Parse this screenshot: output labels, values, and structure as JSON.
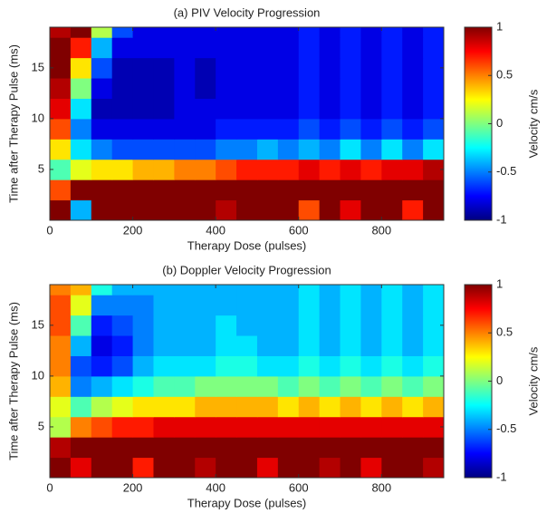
{
  "chart_data": [
    {
      "type": "heatmap",
      "title": "(a) PIV Velocity Progression",
      "x_label": "Therapy Dose (pulses)",
      "y_label": "Time after Therapy Pulse (ms)",
      "x": [
        25,
        75,
        125,
        175,
        225,
        275,
        325,
        375,
        425,
        475,
        525,
        575,
        625,
        675,
        725,
        775,
        825,
        875,
        925
      ],
      "y": [
        1,
        3,
        5,
        7,
        9,
        11,
        13,
        15,
        17,
        19
      ],
      "z": [
        [
          1,
          -0.4,
          1,
          1,
          1,
          1,
          1,
          1,
          0.9,
          1,
          1,
          1,
          0.6,
          1,
          0.8,
          1,
          1,
          0.7,
          1
        ],
        [
          0.6,
          1,
          1,
          1,
          1,
          1,
          1,
          1,
          1,
          1,
          1,
          1,
          1,
          1,
          1,
          1,
          1,
          1,
          1
        ],
        [
          -0.1,
          0.2,
          0.3,
          0.3,
          0.4,
          0.4,
          0.5,
          0.5,
          0.6,
          0.7,
          0.7,
          0.7,
          0.8,
          0.7,
          0.8,
          0.7,
          0.8,
          0.8,
          0.9
        ],
        [
          0.3,
          -0.3,
          -0.5,
          -0.6,
          -0.6,
          -0.6,
          -0.6,
          -0.6,
          -0.5,
          -0.5,
          -0.4,
          -0.5,
          -0.4,
          -0.5,
          -0.3,
          -0.5,
          -0.3,
          -0.5,
          -0.3
        ],
        [
          0.6,
          -0.5,
          -0.8,
          -0.8,
          -0.8,
          -0.8,
          -0.8,
          -0.8,
          -0.7,
          -0.7,
          -0.7,
          -0.7,
          -0.6,
          -0.7,
          -0.6,
          -0.7,
          -0.6,
          -0.7,
          -0.6
        ],
        [
          0.8,
          -0.3,
          -0.9,
          -0.9,
          -0.9,
          -0.9,
          -0.8,
          -0.8,
          -0.8,
          -0.8,
          -0.8,
          -0.8,
          -0.7,
          -0.8,
          -0.7,
          -0.8,
          -0.7,
          -0.8,
          -0.7
        ],
        [
          0.9,
          0,
          -0.8,
          -0.9,
          -0.9,
          -0.9,
          -0.8,
          -0.9,
          -0.8,
          -0.8,
          -0.8,
          -0.8,
          -0.7,
          -0.8,
          -0.7,
          -0.8,
          -0.7,
          -0.8,
          -0.7
        ],
        [
          1,
          0.3,
          -0.6,
          -0.9,
          -0.9,
          -0.9,
          -0.8,
          -0.9,
          -0.8,
          -0.8,
          -0.8,
          -0.8,
          -0.7,
          -0.8,
          -0.7,
          -0.8,
          -0.7,
          -0.8,
          -0.7
        ],
        [
          1,
          0.7,
          -0.4,
          -0.8,
          -0.8,
          -0.8,
          -0.8,
          -0.8,
          -0.8,
          -0.8,
          -0.8,
          -0.8,
          -0.7,
          -0.8,
          -0.7,
          -0.8,
          -0.7,
          -0.8,
          -0.7
        ],
        [
          0.9,
          1,
          0.1,
          -0.6,
          -0.8,
          -0.8,
          -0.8,
          -0.8,
          -0.8,
          -0.8,
          -0.8,
          -0.8,
          -0.7,
          -0.8,
          -0.7,
          -0.8,
          -0.7,
          -0.8,
          -0.7
        ]
      ],
      "xlim": [
        0,
        950
      ],
      "ylim": [
        0,
        19
      ],
      "xticks": [
        0,
        200,
        400,
        600,
        800
      ],
      "yticks": [
        5,
        10,
        15
      ],
      "colorbar": {
        "label": "Velocity cm/s",
        "clim": [
          -1,
          1
        ],
        "ticks": [
          -1,
          -0.5,
          0,
          0.5,
          1
        ],
        "colormap": "jet"
      }
    },
    {
      "type": "heatmap",
      "title": "(b) Doppler Velocity Progression",
      "x_label": "Therapy Dose (pulses)",
      "y_label": "Time after Therapy Pulse (ms)",
      "x": [
        25,
        75,
        125,
        175,
        225,
        275,
        325,
        375,
        425,
        475,
        525,
        575,
        625,
        675,
        725,
        775,
        825,
        875,
        925
      ],
      "y": [
        1,
        3,
        5,
        7,
        9,
        11,
        13,
        15,
        17,
        19
      ],
      "z": [
        [
          1,
          0.8,
          1,
          1,
          0.7,
          1,
          1,
          0.9,
          1,
          1,
          0.8,
          1,
          1,
          0.9,
          1,
          0.8,
          1,
          1,
          0.9
        ],
        [
          0.9,
          1,
          1,
          1,
          1,
          1,
          1,
          1,
          1,
          1,
          1,
          1,
          1,
          1,
          1,
          1,
          1,
          1,
          1
        ],
        [
          0.1,
          0.5,
          0.6,
          0.7,
          0.7,
          0.8,
          0.8,
          0.8,
          0.8,
          0.8,
          0.8,
          0.8,
          0.8,
          0.8,
          0.8,
          0.8,
          0.8,
          0.8,
          0.8
        ],
        [
          0.2,
          -0.1,
          0.1,
          0.2,
          0.3,
          0.3,
          0.3,
          0.4,
          0.4,
          0.4,
          0.4,
          0.3,
          0.4,
          0.3,
          0.4,
          0.3,
          0.4,
          0.3,
          0.4
        ],
        [
          0.4,
          -0.5,
          -0.4,
          -0.3,
          -0.2,
          -0.1,
          -0.1,
          0,
          0,
          0,
          0,
          -0.1,
          0,
          -0.1,
          0,
          -0.1,
          0,
          -0.1,
          0
        ],
        [
          0.5,
          -0.6,
          -0.7,
          -0.6,
          -0.4,
          -0.3,
          -0.3,
          -0.3,
          -0.2,
          -0.2,
          -0.3,
          -0.3,
          -0.2,
          -0.3,
          -0.2,
          -0.3,
          -0.2,
          -0.3,
          -0.2
        ],
        [
          0.5,
          -0.4,
          -0.8,
          -0.7,
          -0.5,
          -0.4,
          -0.4,
          -0.4,
          -0.3,
          -0.3,
          -0.4,
          -0.4,
          -0.3,
          -0.4,
          -0.3,
          -0.4,
          -0.3,
          -0.4,
          -0.3
        ],
        [
          0.6,
          -0.1,
          -0.7,
          -0.6,
          -0.5,
          -0.4,
          -0.4,
          -0.4,
          -0.3,
          -0.4,
          -0.4,
          -0.4,
          -0.3,
          -0.4,
          -0.3,
          -0.4,
          -0.3,
          -0.4,
          -0.3
        ],
        [
          0.6,
          0.2,
          -0.5,
          -0.5,
          -0.5,
          -0.4,
          -0.4,
          -0.4,
          -0.4,
          -0.4,
          -0.4,
          -0.4,
          -0.3,
          -0.4,
          -0.3,
          -0.4,
          -0.3,
          -0.4,
          -0.3
        ],
        [
          0.5,
          0.4,
          -0.2,
          -0.4,
          -0.4,
          -0.4,
          -0.4,
          -0.4,
          -0.4,
          -0.4,
          -0.4,
          -0.4,
          -0.3,
          -0.4,
          -0.3,
          -0.4,
          -0.3,
          -0.4,
          -0.3
        ]
      ],
      "xlim": [
        0,
        950
      ],
      "ylim": [
        0,
        19
      ],
      "xticks": [
        0,
        200,
        400,
        600,
        800
      ],
      "yticks": [
        5,
        10,
        15
      ],
      "colorbar": {
        "label": "Velocity cm/s",
        "clim": [
          -1,
          1
        ],
        "ticks": [
          -1,
          -0.5,
          0,
          0.5,
          1
        ],
        "colormap": "jet"
      }
    }
  ]
}
